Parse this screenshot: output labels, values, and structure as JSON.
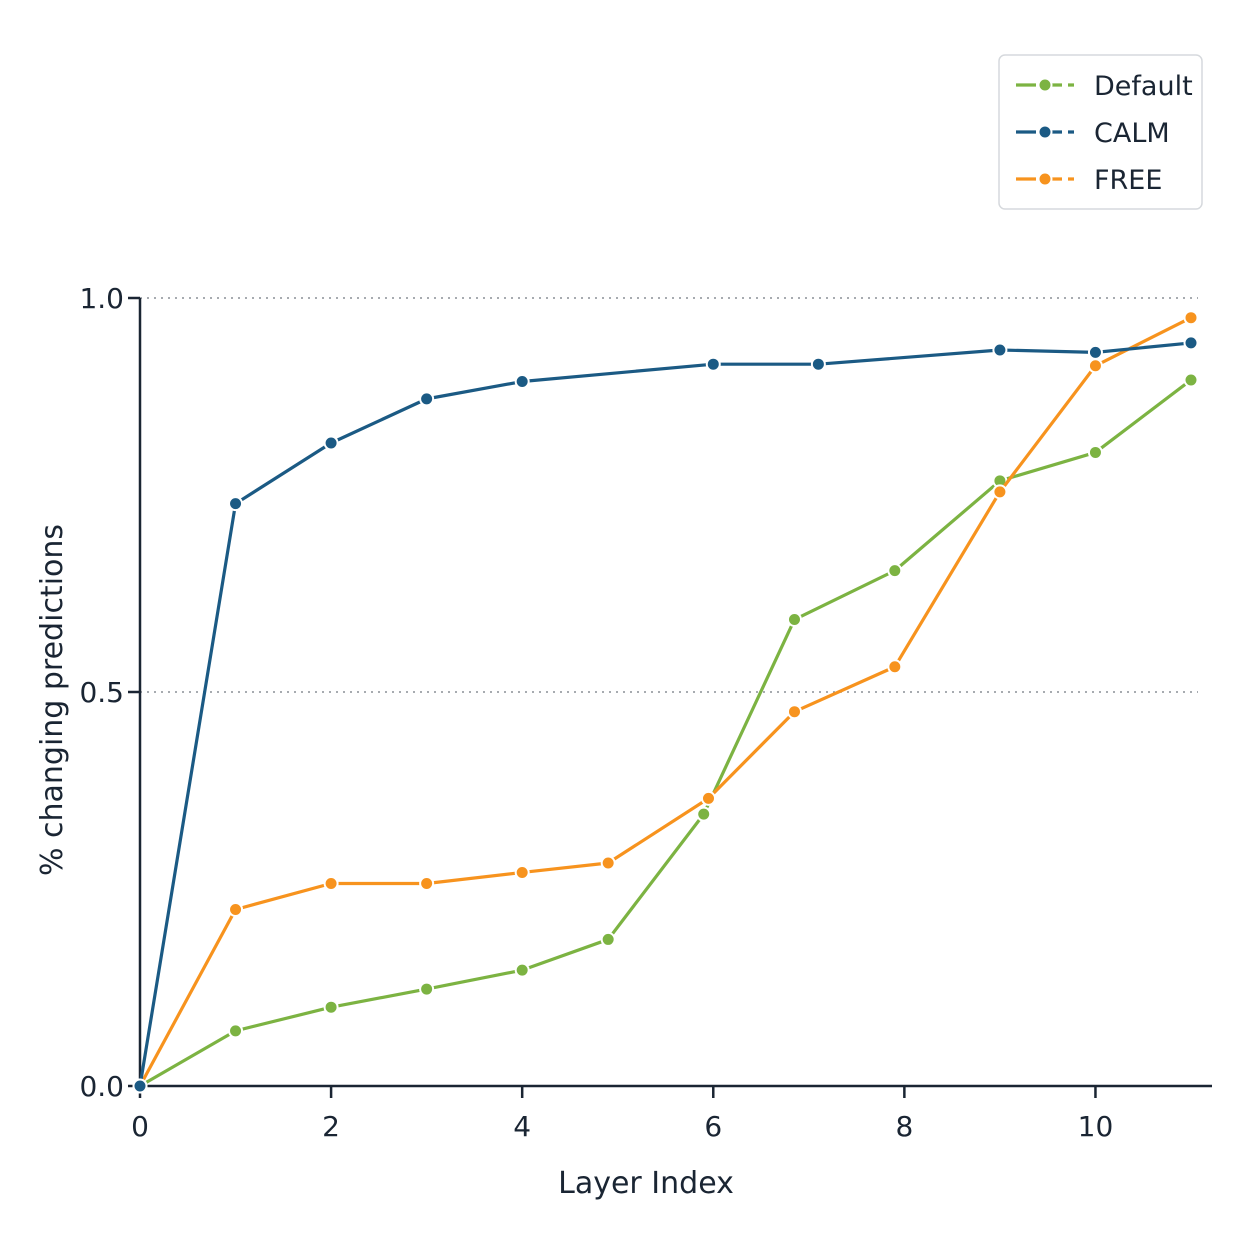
{
  "chart_data": {
    "type": "line",
    "title": "",
    "xlabel": "Layer Index",
    "ylabel": "% changing predictions",
    "xlim": [
      0,
      11
    ],
    "ylim": [
      0,
      1
    ],
    "xticks": [
      "0",
      "2",
      "4",
      "6",
      "8",
      "10"
    ],
    "xtick_values": [
      0,
      2,
      4,
      6,
      8,
      10
    ],
    "yticks": [
      "0.0",
      "0.5",
      "1.0"
    ],
    "ytick_values": [
      0,
      0.5,
      1.0
    ],
    "grid": "horizontal dotted at 0.5 and 1.0",
    "legend_position": "top-right",
    "series": [
      {
        "name": "Default",
        "color": "#7cb342",
        "x": [
          0,
          1,
          2,
          3,
          4,
          4.9,
          5.9,
          6.85,
          7.9,
          9,
          10,
          11
        ],
        "y": [
          0.0,
          0.07,
          0.1,
          0.123,
          0.147,
          0.186,
          0.345,
          0.592,
          0.654,
          0.768,
          0.804,
          0.896
        ]
      },
      {
        "name": "CALM",
        "color": "#1b5a84",
        "x": [
          0,
          1,
          2,
          3,
          4,
          6,
          7.1,
          9,
          10,
          11
        ],
        "y": [
          0.0,
          0.739,
          0.816,
          0.872,
          0.894,
          0.916,
          0.916,
          0.934,
          0.931,
          0.943
        ]
      },
      {
        "name": "FREE",
        "color": "#f7931e",
        "x": [
          0,
          1,
          2,
          3,
          4,
          4.9,
          5.95,
          6.85,
          7.9,
          9,
          10,
          11
        ],
        "y": [
          0.0,
          0.224,
          0.257,
          0.257,
          0.271,
          0.283,
          0.365,
          0.475,
          0.532,
          0.754,
          0.914,
          0.975
        ]
      }
    ]
  }
}
